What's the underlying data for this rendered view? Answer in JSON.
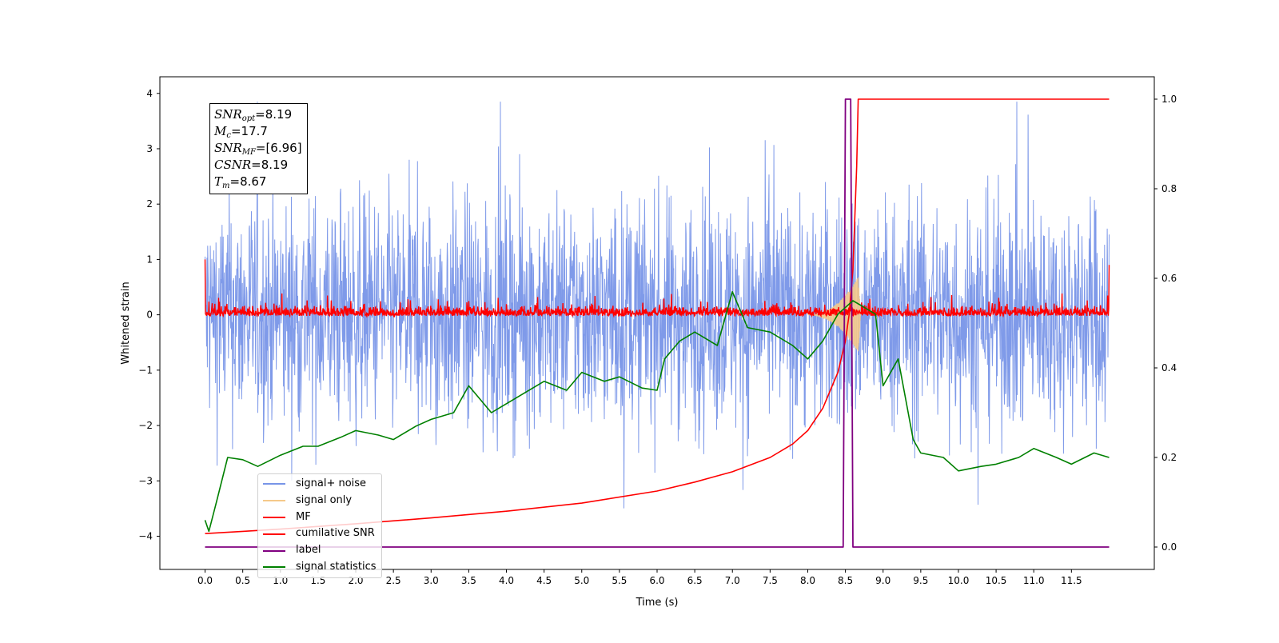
{
  "chart_data": {
    "type": "line",
    "title": "",
    "xlabel": "Time (s)",
    "ylabel": "Whitened strain",
    "xlim": [
      -0.6,
      12.6
    ],
    "ylim": [
      -4.6,
      4.3
    ],
    "y2lim": [
      -0.05,
      1.05
    ],
    "x_ticks": [
      "0.0",
      "0.5",
      "1.0",
      "1.5",
      "2.0",
      "2.5",
      "3.0",
      "3.5",
      "4.0",
      "4.5",
      "5.0",
      "5.5",
      "6.0",
      "6.5",
      "7.0",
      "7.5",
      "8.0",
      "8.5",
      "9.0",
      "9.5",
      "10.0",
      "10.5",
      "11.0",
      "11.5"
    ],
    "y_ticks": [
      "4",
      "3",
      "2",
      "1",
      "0",
      "−1",
      "−2",
      "−3",
      "−4"
    ],
    "y2_ticks": [
      "1.0",
      "0.8",
      "0.6",
      "0.4",
      "0.2",
      "0.0"
    ],
    "grid": false,
    "legend_position": "lower-left",
    "annotation": {
      "snr_opt_label": "SNR",
      "snr_opt_sub": "opt",
      "snr_opt_value": "=8.19",
      "mc_label": "M",
      "mc_sub": "c",
      "mc_value": "=17.7",
      "snr_mf_label": "SNR",
      "snr_mf_sub": "MF",
      "snr_mf_value": "=[6.96]",
      "csnr_label": "CSNR",
      "csnr_value": "=8.19",
      "tm_label": "T",
      "tm_sub": "m",
      "tm_value": "=8.67"
    },
    "series": [
      {
        "name": "signal+ noise",
        "color": "#7895e8",
        "axis": "left",
        "note_type": "noise",
        "x_range": [
          0,
          12
        ],
        "amplitude_range": [
          -3.7,
          3.85
        ]
      },
      {
        "name": "signal only",
        "color": "#f5c98a",
        "axis": "left",
        "x_range": [
          8.0,
          8.7
        ],
        "peak": 0.75
      },
      {
        "name": "MF",
        "color": "#ff0000",
        "axis": "left",
        "baseline": 0.0,
        "range": [
          -0.2,
          0.5
        ]
      },
      {
        "name": "cumilative SNR",
        "color": "#ff0000",
        "axis": "right",
        "x": [
          0.0,
          0.5,
          1.0,
          2.0,
          3.0,
          4.0,
          5.0,
          6.0,
          6.5,
          7.0,
          7.5,
          7.8,
          8.0,
          8.2,
          8.4,
          8.5,
          8.55,
          8.6,
          8.65,
          8.67,
          12.0
        ],
        "values": [
          0.03,
          0.035,
          0.04,
          0.052,
          0.065,
          0.08,
          0.098,
          0.125,
          0.145,
          0.168,
          0.2,
          0.23,
          0.26,
          0.31,
          0.39,
          0.46,
          0.52,
          0.62,
          0.85,
          1.0,
          1.0
        ]
      },
      {
        "name": "label",
        "color": "#800080",
        "axis": "right",
        "x": [
          0.0,
          8.47,
          8.5,
          8.57,
          8.6,
          8.65,
          12.0
        ],
        "values": [
          0.0,
          0.0,
          1.0,
          1.0,
          0.0,
          0.0,
          0.0
        ]
      },
      {
        "name": "signal statistics",
        "color": "#008000",
        "axis": "right",
        "x": [
          0.0,
          0.05,
          0.15,
          0.3,
          0.5,
          0.7,
          1.0,
          1.3,
          1.5,
          1.8,
          2.0,
          2.3,
          2.5,
          2.8,
          3.0,
          3.3,
          3.5,
          3.8,
          4.0,
          4.2,
          4.5,
          4.8,
          5.0,
          5.3,
          5.5,
          5.8,
          6.0,
          6.1,
          6.3,
          6.5,
          6.8,
          7.0,
          7.2,
          7.5,
          7.8,
          8.0,
          8.2,
          8.4,
          8.6,
          8.7,
          8.9,
          9.0,
          9.2,
          9.4,
          9.5,
          9.8,
          10.0,
          10.3,
          10.5,
          10.8,
          11.0,
          11.3,
          11.5,
          11.8,
          12.0
        ],
        "values": [
          0.06,
          0.035,
          0.1,
          0.2,
          0.195,
          0.18,
          0.205,
          0.225,
          0.225,
          0.245,
          0.26,
          0.25,
          0.24,
          0.27,
          0.285,
          0.3,
          0.36,
          0.3,
          0.32,
          0.34,
          0.37,
          0.35,
          0.39,
          0.37,
          0.38,
          0.355,
          0.35,
          0.42,
          0.46,
          0.48,
          0.45,
          0.57,
          0.49,
          0.48,
          0.45,
          0.42,
          0.46,
          0.52,
          0.55,
          0.54,
          0.52,
          0.36,
          0.42,
          0.24,
          0.21,
          0.2,
          0.17,
          0.18,
          0.185,
          0.2,
          0.22,
          0.2,
          0.185,
          0.21,
          0.2
        ]
      }
    ]
  },
  "legend": {
    "items": [
      "signal+ noise",
      "signal only",
      "MF",
      "cumilative SNR",
      "label",
      "signal statistics"
    ],
    "colors": [
      "#7895e8",
      "#f5c98a",
      "#ff0000",
      "#ff0000",
      "#800080",
      "#008000"
    ]
  }
}
